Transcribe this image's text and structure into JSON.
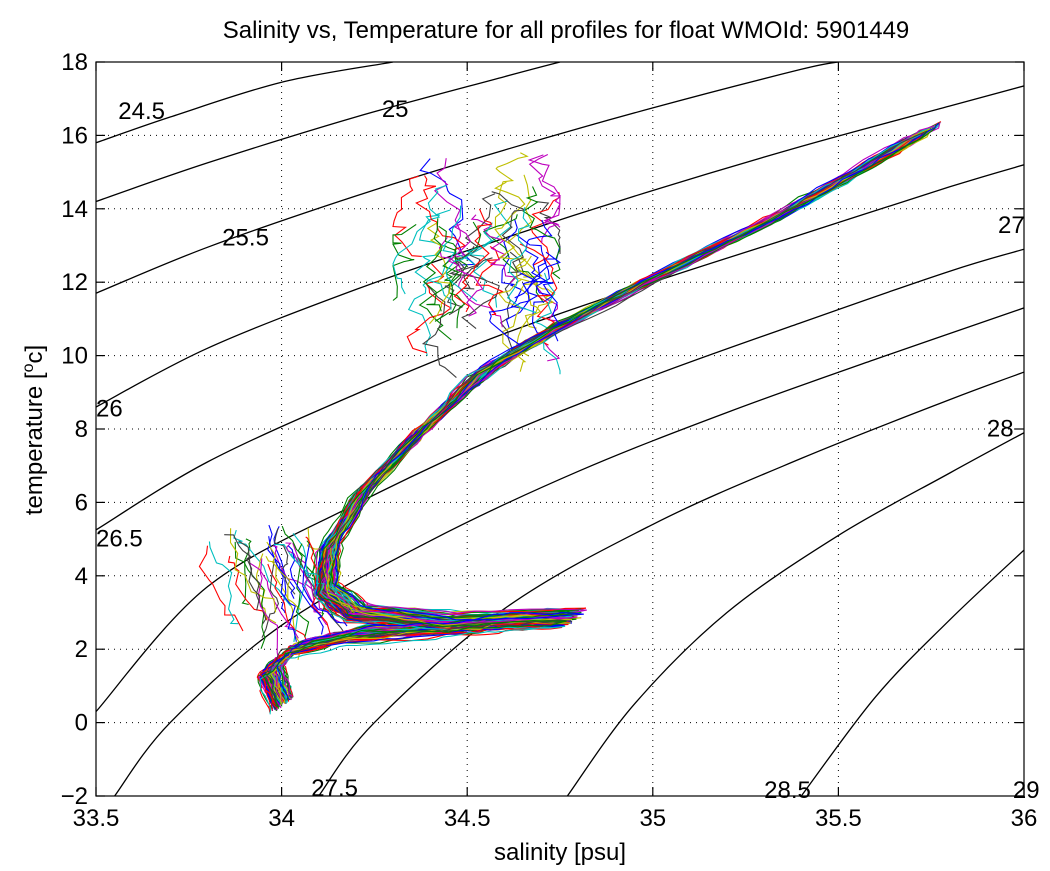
{
  "chart_data": {
    "type": "line",
    "title": "Salinity vs, Temperature for all profiles for float WMOId: 5901449",
    "xlabel": "salinity [psu]",
    "ylabel": "temperature [",
    "ylabel_sup": "o",
    "ylabel_tail": "c]",
    "xlim": [
      33.5,
      36
    ],
    "ylim": [
      -2,
      18
    ],
    "xticks": [
      33.5,
      34,
      34.5,
      35,
      35.5,
      36
    ],
    "xtick_labels": [
      "33.5",
      "34",
      "34.5",
      "35",
      "35.5",
      "36"
    ],
    "yticks": [
      -2,
      0,
      2,
      4,
      6,
      8,
      10,
      12,
      14,
      16,
      18
    ],
    "ytick_labels": [
      "−2",
      "0",
      "2",
      "4",
      "6",
      "8",
      "10",
      "12",
      "14",
      "16",
      "18"
    ],
    "grid": true,
    "density_contours": [
      {
        "label": "24.5",
        "points": [
          [
            33.5,
            15.8
          ],
          [
            33.7,
            16.5
          ],
          [
            34.0,
            17.45
          ],
          [
            34.3,
            18.0
          ]
        ]
      },
      {
        "label": "25",
        "points": [
          [
            33.5,
            14.2
          ],
          [
            33.8,
            15.25
          ],
          [
            34.2,
            16.5
          ],
          [
            34.6,
            17.6
          ],
          [
            34.75,
            18.0
          ]
        ]
      },
      {
        "label": "25.5",
        "points": [
          [
            33.5,
            11.7
          ],
          [
            33.8,
            12.95
          ],
          [
            34.2,
            14.35
          ],
          [
            34.6,
            15.6
          ],
          [
            35.0,
            16.75
          ],
          [
            35.4,
            17.8
          ],
          [
            35.5,
            18.0
          ]
        ]
      },
      {
        "label": "26",
        "points": [
          [
            33.5,
            8.6
          ],
          [
            33.8,
            10.2
          ],
          [
            34.2,
            11.8
          ],
          [
            34.6,
            13.2
          ],
          [
            35.0,
            14.5
          ],
          [
            35.4,
            15.7
          ],
          [
            35.8,
            16.8
          ],
          [
            36.0,
            17.35
          ]
        ]
      },
      {
        "label": "26.5",
        "points": [
          [
            33.5,
            5.25
          ],
          [
            33.8,
            7.1
          ],
          [
            34.2,
            8.95
          ],
          [
            34.6,
            10.6
          ],
          [
            35.0,
            12.0
          ],
          [
            35.4,
            13.3
          ],
          [
            35.8,
            14.6
          ],
          [
            36.0,
            15.2
          ]
        ]
      },
      {
        "label": "27",
        "points": [
          [
            33.5,
            0.3
          ],
          [
            33.8,
            3.7
          ],
          [
            34.2,
            5.95
          ],
          [
            34.6,
            7.85
          ],
          [
            35.0,
            9.45
          ],
          [
            35.4,
            10.9
          ],
          [
            35.8,
            12.3
          ],
          [
            36.0,
            12.9
          ]
        ]
      },
      {
        "label": "27.5",
        "points": [
          [
            33.55,
            -2.0
          ],
          [
            33.7,
            0.0
          ],
          [
            34.0,
            2.65
          ],
          [
            34.4,
            4.95
          ],
          [
            34.8,
            6.85
          ],
          [
            35.2,
            8.45
          ],
          [
            35.6,
            9.9
          ],
          [
            36.0,
            11.3
          ]
        ]
      },
      {
        "label": "28",
        "points": [
          [
            34.1,
            -2.0
          ],
          [
            34.25,
            0.0
          ],
          [
            34.6,
            3.1
          ],
          [
            35.0,
            5.4
          ],
          [
            35.4,
            7.2
          ],
          [
            35.8,
            8.8
          ],
          [
            36.0,
            9.55
          ]
        ]
      },
      {
        "label": "28.5",
        "points": [
          [
            34.77,
            -2.0
          ],
          [
            34.95,
            0.5
          ],
          [
            35.2,
            3.0
          ],
          [
            35.5,
            5.1
          ],
          [
            35.8,
            6.8
          ],
          [
            36.0,
            7.9
          ]
        ]
      },
      {
        "label": "29",
        "points": [
          [
            35.4,
            -2.0
          ],
          [
            35.6,
            0.7
          ],
          [
            35.8,
            2.8
          ],
          [
            36.0,
            4.7
          ]
        ]
      }
    ],
    "profile_colors": [
      "#0000ff",
      "#008000",
      "#ff0000",
      "#00bfbf",
      "#bf00bf",
      "#bfbf00",
      "#404040"
    ],
    "profile_count": 100,
    "profile_path": [
      [
        34.0,
        0.5
      ],
      [
        33.97,
        1.4
      ],
      [
        34.03,
        2.0
      ],
      [
        34.2,
        2.4
      ],
      [
        34.45,
        2.6
      ],
      [
        34.6,
        2.75
      ],
      [
        34.78,
        2.85
      ],
      [
        34.45,
        2.75
      ],
      [
        34.2,
        3.0
      ],
      [
        34.12,
        3.6
      ],
      [
        34.13,
        4.8
      ],
      [
        34.22,
        6.3
      ],
      [
        34.38,
        8.0
      ],
      [
        34.55,
        9.6
      ],
      [
        34.75,
        10.8
      ],
      [
        35.0,
        12.1
      ],
      [
        35.3,
        13.6
      ],
      [
        35.55,
        15.0
      ],
      [
        35.75,
        16.2
      ]
    ],
    "scatter_regions": [
      {
        "x": [
          34.35,
          34.75
        ],
        "y": [
          12.0,
          15.6
        ]
      },
      {
        "x": [
          33.8,
          34.08
        ],
        "y": [
          1.0,
          5.5
        ]
      }
    ]
  }
}
